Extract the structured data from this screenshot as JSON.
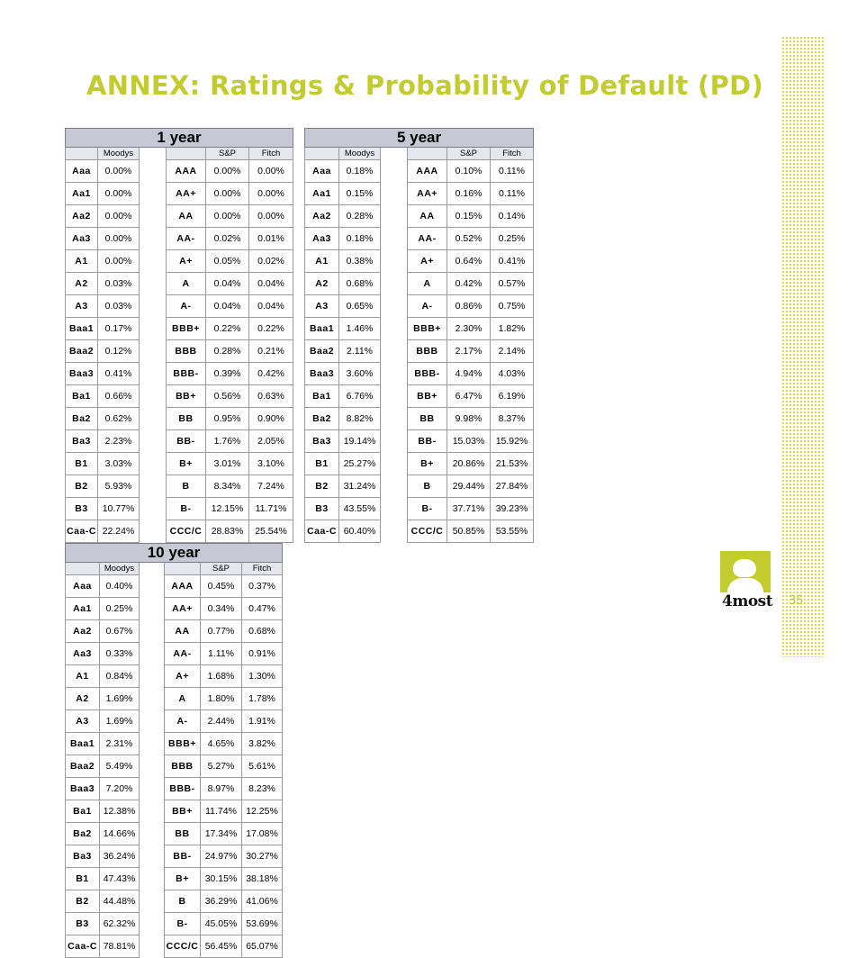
{
  "title": "ANNEX: Ratings & Probability of Default (PD)",
  "horizons": [
    "1 year",
    "5 year",
    "10 year"
  ],
  "agencies": {
    "moodys": "Moodys",
    "sp": "S&P",
    "fitch": "Fitch"
  },
  "moodys_codes": [
    "Aaa",
    "Aa1",
    "Aa2",
    "Aa3",
    "A1",
    "A2",
    "A3",
    "Baa1",
    "Baa2",
    "Baa3",
    "Ba1",
    "Ba2",
    "Ba3",
    "B1",
    "B2",
    "B3",
    "Caa-C"
  ],
  "sp_codes": [
    "AAA",
    "AA+",
    "AA",
    "AA-",
    "A+",
    "A",
    "A-",
    "BBB+",
    "BBB",
    "BBB-",
    "BB+",
    "BB",
    "BB-",
    "B+",
    "B",
    "B-",
    "CCC/C"
  ],
  "year1": {
    "moodys": [
      "0.00%",
      "0.00%",
      "0.00%",
      "0.00%",
      "0.00%",
      "0.03%",
      "0.03%",
      "0.17%",
      "0.12%",
      "0.41%",
      "0.66%",
      "0.62%",
      "2.23%",
      "3.03%",
      "5.93%",
      "10.77%",
      "22.24%"
    ],
    "sp": [
      "0.00%",
      "0.00%",
      "0.00%",
      "0.02%",
      "0.05%",
      "0.04%",
      "0.04%",
      "0.22%",
      "0.28%",
      "0.39%",
      "0.56%",
      "0.95%",
      "1.76%",
      "3.01%",
      "8.34%",
      "12.15%",
      "28.83%"
    ],
    "fitch": [
      "0.00%",
      "0.00%",
      "0.00%",
      "0.01%",
      "0.02%",
      "0.04%",
      "0.04%",
      "0.22%",
      "0.21%",
      "0.42%",
      "0.63%",
      "0.90%",
      "2.05%",
      "3.10%",
      "7.24%",
      "11.71%",
      "25.54%"
    ]
  },
  "year5": {
    "moodys": [
      "0.18%",
      "0.15%",
      "0.28%",
      "0.18%",
      "0.38%",
      "0.68%",
      "0.65%",
      "1.46%",
      "2.11%",
      "3.60%",
      "6.76%",
      "8.82%",
      "19.14%",
      "25.27%",
      "31.24%",
      "43.55%",
      "60.40%"
    ],
    "sp": [
      "0.10%",
      "0.16%",
      "0.15%",
      "0.52%",
      "0.64%",
      "0.42%",
      "0.86%",
      "2.30%",
      "2.17%",
      "4.94%",
      "6.47%",
      "9.98%",
      "15.03%",
      "20.86%",
      "29.44%",
      "37.71%",
      "50.85%"
    ],
    "fitch": [
      "0.11%",
      "0.11%",
      "0.14%",
      "0.25%",
      "0.41%",
      "0.57%",
      "0.75%",
      "1.82%",
      "2.14%",
      "4.03%",
      "6.19%",
      "8.37%",
      "15.92%",
      "21.53%",
      "27.84%",
      "39.23%",
      "53.55%"
    ]
  },
  "year10": {
    "moodys": [
      "0.40%",
      "0.25%",
      "0.67%",
      "0.33%",
      "0.84%",
      "1.69%",
      "1.69%",
      "2.31%",
      "5.49%",
      "7.20%",
      "12.38%",
      "14.66%",
      "36.24%",
      "47.43%",
      "44.48%",
      "62.32%",
      "78.81%"
    ],
    "sp": [
      "0.45%",
      "0.34%",
      "0.77%",
      "1.11%",
      "1.68%",
      "1.80%",
      "2.44%",
      "4.65%",
      "5.27%",
      "8.97%",
      "11.74%",
      "17.34%",
      "24.97%",
      "30.15%",
      "36.29%",
      "45.05%",
      "56.45%"
    ],
    "fitch": [
      "0.37%",
      "0.47%",
      "0.68%",
      "0.91%",
      "1.30%",
      "1.78%",
      "1.91%",
      "3.82%",
      "5.61%",
      "8.23%",
      "12.25%",
      "17.08%",
      "30.27%",
      "38.18%",
      "41.06%",
      "53.69%",
      "65.07%"
    ]
  },
  "logo_text": "4most",
  "page_number": "35",
  "colors": {
    "accent": "#c3cc2f",
    "header": "#c8c8d4",
    "subheader": "#e6e6ef"
  }
}
